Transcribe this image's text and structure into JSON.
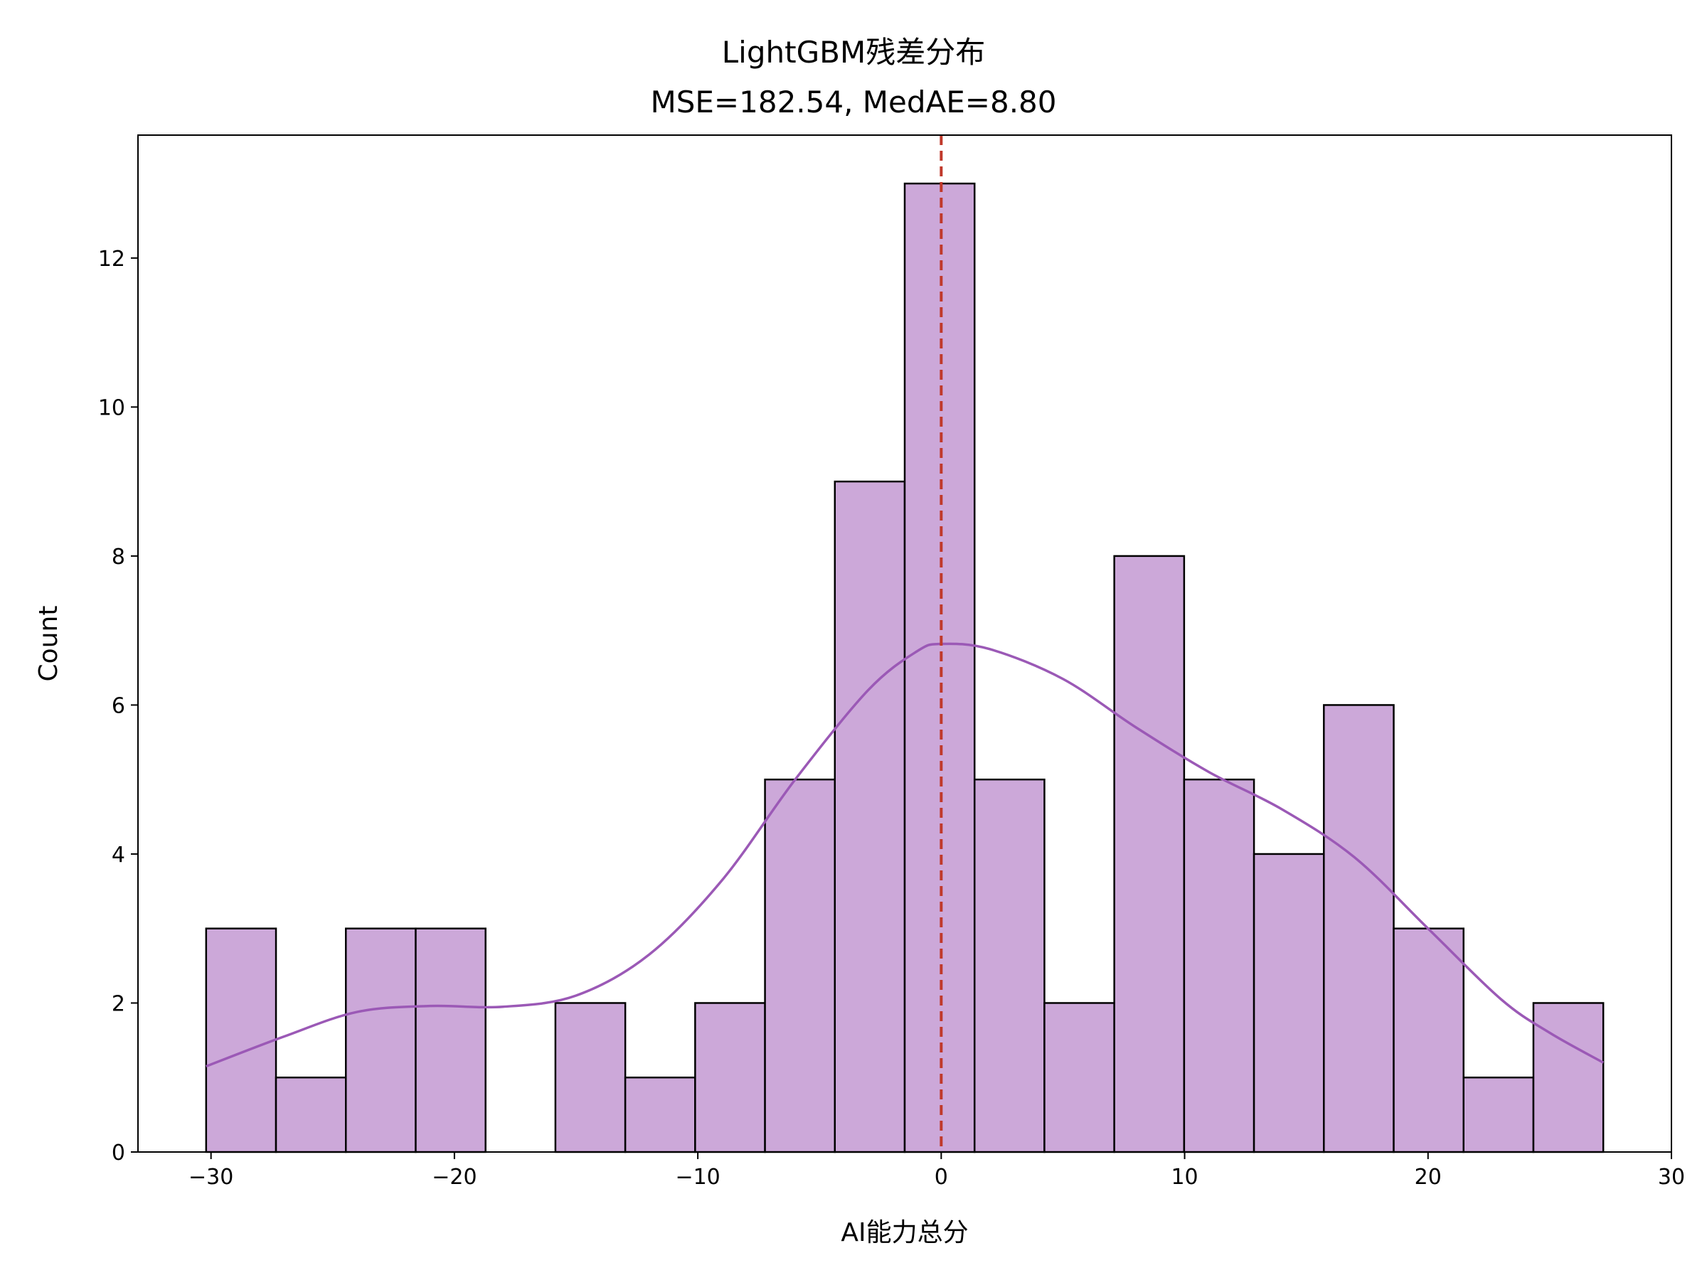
{
  "chart_data": {
    "type": "bar",
    "subtype": "histogram-with-kde",
    "title": "LightGBM残差分布",
    "subtitle": "MSE=182.54, MedAE=8.80",
    "xlabel": "AI能力总分",
    "ylabel": "Count",
    "xlim": [
      -33.0,
      30.0
    ],
    "ylim": [
      0,
      13.65
    ],
    "xticks": [
      -30,
      -20,
      -10,
      0,
      10,
      20,
      30
    ],
    "xtick_labels": [
      "−30",
      "−20",
      "−10",
      "0",
      "10",
      "20",
      "30"
    ],
    "yticks": [
      0,
      2,
      4,
      6,
      8,
      10,
      12
    ],
    "ytick_labels": [
      "0",
      "2",
      "4",
      "6",
      "8",
      "10",
      "12"
    ],
    "grid": false,
    "bin_edges": [
      -30.2,
      -27.33,
      -24.46,
      -21.59,
      -18.72,
      -15.85,
      -12.98,
      -10.11,
      -7.24,
      -4.37,
      -1.5,
      1.37,
      4.24,
      7.11,
      9.98,
      12.85,
      15.72,
      18.59,
      21.46,
      24.33,
      27.2
    ],
    "counts": [
      3,
      1,
      3,
      3,
      0,
      2,
      1,
      2,
      5,
      9,
      13,
      5,
      2,
      8,
      5,
      4,
      6,
      3,
      1,
      2
    ],
    "kde": {
      "x": [
        -30.2,
        -27,
        -24,
        -21,
        -18,
        -15,
        -12,
        -9,
        -6,
        -3,
        -1,
        0,
        2,
        5,
        8,
        11,
        14,
        17,
        20,
        23,
        25,
        27.2
      ],
      "y": [
        1.15,
        1.55,
        1.88,
        1.96,
        1.95,
        2.1,
        2.65,
        3.65,
        5.0,
        6.2,
        6.72,
        6.82,
        6.75,
        6.35,
        5.7,
        5.1,
        4.6,
        3.95,
        3.0,
        2.05,
        1.6,
        1.2
      ]
    },
    "vline": {
      "x": 0,
      "style": "dashed"
    },
    "colors": {
      "bar_fill": "#cca8d9",
      "bar_edge": "#000000",
      "kde_line": "#9b59b6",
      "vline": "#c0392b"
    }
  }
}
